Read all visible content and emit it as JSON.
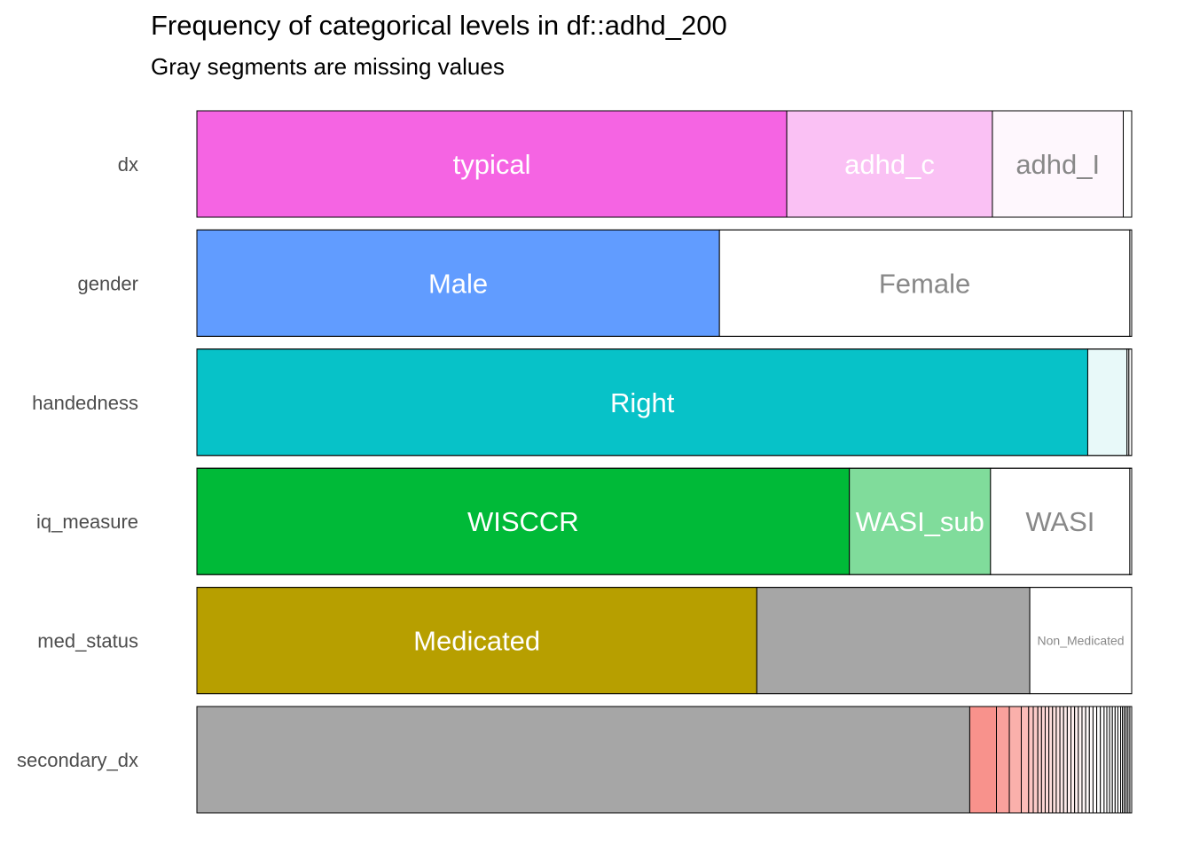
{
  "chart_data": {
    "type": "bar",
    "orientation": "horizontal-stacked-proportion",
    "title": "Frequency of categorical levels in df::adhd_200",
    "subtitle": "Gray segments are missing values",
    "xlim": [
      0,
      1
    ],
    "grid": false,
    "legend": "none",
    "rows": [
      {
        "name": "dx",
        "segments": [
          {
            "level": "typical",
            "prop": 0.631,
            "color": "#f564e3",
            "text_color": "#ffffff"
          },
          {
            "level": "adhd_c",
            "prop": 0.22,
            "color": "#fac1f4",
            "text_color": "#ffffff"
          },
          {
            "level": "adhd_I",
            "prop": 0.14,
            "color": "#fef7fd",
            "text_color": "#888888"
          },
          {
            "level": "",
            "prop": 0.009,
            "color": "#ffffff",
            "text_color": "#888888"
          }
        ]
      },
      {
        "name": "gender",
        "segments": [
          {
            "level": "Male",
            "prop": 0.559,
            "color": "#619cff",
            "text_color": "#ffffff"
          },
          {
            "level": "Female",
            "prop": 0.439,
            "color": "#ffffff",
            "text_color": "#888888"
          },
          {
            "level": "",
            "prop": 0.002,
            "color": "#ffffff",
            "text_color": "#888888"
          }
        ]
      },
      {
        "name": "handedness",
        "segments": [
          {
            "level": "Right",
            "prop": 0.953,
            "color": "#07c2c8",
            "text_color": "#ffffff"
          },
          {
            "level": "",
            "prop": 0.042,
            "color": "#e8f9f9",
            "text_color": "#888888"
          },
          {
            "level": "",
            "prop": 0.002,
            "color": "#ffffff",
            "text_color": "#888888"
          },
          {
            "level": "",
            "prop": 0.003,
            "color": "#ffffff",
            "text_color": "#888888"
          }
        ]
      },
      {
        "name": "iq_measure",
        "segments": [
          {
            "level": "WISCCR",
            "prop": 0.698,
            "color": "#00ba38",
            "text_color": "#ffffff"
          },
          {
            "level": "WASI_sub",
            "prop": 0.151,
            "color": "#80dc9b",
            "text_color": "#ffffff"
          },
          {
            "level": "WASI",
            "prop": 0.149,
            "color": "#ffffff",
            "text_color": "#888888"
          },
          {
            "level": "",
            "prop": 0.002,
            "color": "#ffffff",
            "text_color": "#888888"
          }
        ]
      },
      {
        "name": "med_status",
        "segments": [
          {
            "level": "Medicated",
            "prop": 0.599,
            "color": "#b79f00",
            "text_color": "#ffffff"
          },
          {
            "level": "",
            "prop": 0.292,
            "color": "#a6a6a6",
            "text_color": "#ffffff"
          },
          {
            "level": "Non_Medicated",
            "prop": 0.109,
            "color": "#ffffff",
            "text_color": "#888888",
            "small": true
          }
        ]
      },
      {
        "name": "secondary_dx",
        "segments": [
          {
            "level": "",
            "prop": 0.84,
            "color": "#a6a6a6",
            "text_color": "#ffffff"
          },
          {
            "level": "",
            "prop": 0.029,
            "color": "#f8928c",
            "text_color": "#ffffff"
          },
          {
            "level": "",
            "prop": 0.014,
            "color": "#f9a19c",
            "text_color": "#ffffff"
          },
          {
            "level": "",
            "prop": 0.013,
            "color": "#fab0ab",
            "text_color": "#ffffff"
          },
          {
            "level": "",
            "prop": 0.008,
            "color": "#fbbdb9",
            "text_color": "#ffffff"
          },
          {
            "level": "",
            "prop": 0.005,
            "color": "#fcc6c3",
            "text_color": "#ffffff"
          },
          {
            "level": "",
            "prop": 0.005,
            "color": "#fcccc9",
            "text_color": "#ffffff"
          },
          {
            "level": "",
            "prop": 0.004,
            "color": "#fdd3d1",
            "text_color": "#ffffff"
          },
          {
            "level": "",
            "prop": 0.004,
            "color": "#fdd7d5",
            "text_color": "#ffffff"
          },
          {
            "level": "",
            "prop": 0.004,
            "color": "#fddbd9",
            "text_color": "#ffffff"
          },
          {
            "level": "",
            "prop": 0.004,
            "color": "#fddedc",
            "text_color": "#ffffff"
          },
          {
            "level": "",
            "prop": 0.004,
            "color": "#fde1df",
            "text_color": "#ffffff"
          },
          {
            "level": "",
            "prop": 0.004,
            "color": "#fee4e3",
            "text_color": "#ffffff"
          },
          {
            "level": "",
            "prop": 0.004,
            "color": "#fee7e6",
            "text_color": "#ffffff"
          },
          {
            "level": "",
            "prop": 0.004,
            "color": "#feeae9",
            "text_color": "#ffffff"
          },
          {
            "level": "",
            "prop": 0.004,
            "color": "#feedec",
            "text_color": "#ffffff"
          },
          {
            "level": "",
            "prop": 0.004,
            "color": "#fef0ef",
            "text_color": "#ffffff"
          },
          {
            "level": "",
            "prop": 0.004,
            "color": "#fef2f2",
            "text_color": "#ffffff"
          },
          {
            "level": "",
            "prop": 0.004,
            "color": "#fff5f4",
            "text_color": "#ffffff"
          },
          {
            "level": "",
            "prop": 0.004,
            "color": "#fff7f7",
            "text_color": "#ffffff"
          },
          {
            "level": "",
            "prop": 0.004,
            "color": "#fff9f9",
            "text_color": "#ffffff"
          },
          {
            "level": "",
            "prop": 0.004,
            "color": "#fffbfb",
            "text_color": "#ffffff"
          },
          {
            "level": "",
            "prop": 0.004,
            "color": "#fffdfd",
            "text_color": "#ffffff"
          },
          {
            "level": "",
            "prop": 0.004,
            "color": "#ffffff",
            "text_color": "#ffffff"
          },
          {
            "level": "",
            "prop": 0.004,
            "color": "#ffffff",
            "text_color": "#ffffff"
          },
          {
            "level": "",
            "prop": 0.003,
            "color": "#ffffff",
            "text_color": "#ffffff"
          },
          {
            "level": "",
            "prop": 0.003,
            "color": "#ffffff",
            "text_color": "#ffffff"
          },
          {
            "level": "",
            "prop": 0.003,
            "color": "#ffffff",
            "text_color": "#ffffff"
          },
          {
            "level": "",
            "prop": 0.003,
            "color": "#ffffff",
            "text_color": "#ffffff"
          },
          {
            "level": "",
            "prop": 0.003,
            "color": "#ffffff",
            "text_color": "#ffffff"
          },
          {
            "level": "",
            "prop": 0.003,
            "color": "#ffffff",
            "text_color": "#ffffff"
          },
          {
            "level": "",
            "prop": 0.002,
            "color": "#ffffff",
            "text_color": "#ffffff"
          },
          {
            "level": "",
            "prop": 0.002,
            "color": "#ffffff",
            "text_color": "#ffffff"
          },
          {
            "level": "",
            "prop": 0.002,
            "color": "#ffffff",
            "text_color": "#ffffff"
          },
          {
            "level": "",
            "prop": 0.002,
            "color": "#ffffff",
            "text_color": "#ffffff"
          },
          {
            "level": "",
            "prop": 0.002,
            "color": "#ffffff",
            "text_color": "#ffffff"
          },
          {
            "level": "",
            "prop": 0.002,
            "color": "#ffffff",
            "text_color": "#ffffff"
          }
        ]
      }
    ]
  }
}
